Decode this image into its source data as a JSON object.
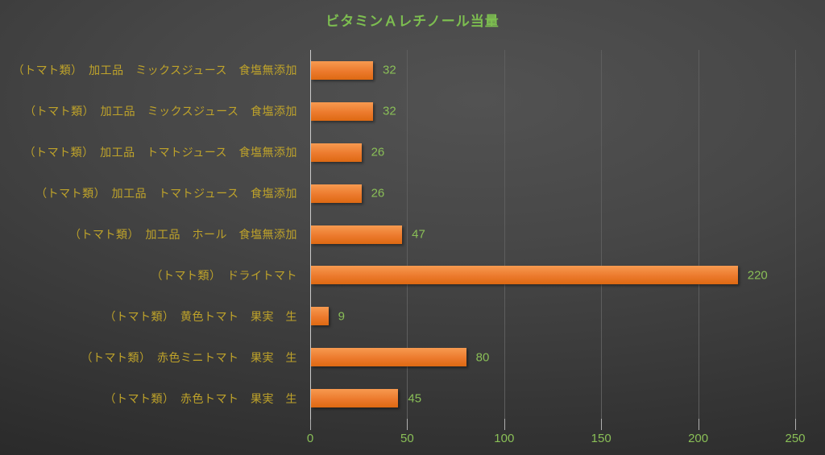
{
  "chart_data": {
    "type": "bar",
    "orientation": "horizontal",
    "title": "ビタミンＡレチノール当量",
    "categories": [
      "（トマト類）　加工品　ミックスジュース　食塩無添加",
      "（トマト類）　加工品　ミックスジュース　食塩添加",
      "（トマト類）　加工品　トマトジュース　食塩無添加",
      "（トマト類）　加工品　トマトジュース　食塩添加",
      "（トマト類）　加工品　ホール　食塩無添加",
      "（トマト類）　ドライトマト",
      "（トマト類）　黄色トマト　果実　生",
      "（トマト類）　赤色ミニトマト　果実　生",
      "（トマト類）　赤色トマト　果実　生"
    ],
    "values": [
      32,
      32,
      26,
      26,
      47,
      220,
      9,
      80,
      45
    ],
    "xlabel": "",
    "ylabel": "",
    "xlim": [
      0,
      250
    ],
    "x_ticks": [
      0,
      50,
      100,
      150,
      200,
      250
    ],
    "grid": true,
    "legend": false,
    "colors": {
      "bar_top": "#F79A50",
      "bar_mid": "#EC7A2D",
      "bar_bottom": "#DE6912",
      "title": "#7DBE50",
      "value_labels": "#8ABF57",
      "axis_tick_labels": "#8ABF57",
      "category_labels": "#BFA32A",
      "gridline": "#5E5E5E",
      "axis_line": "#C9C9C9",
      "tick_mark": "#B0B0B0"
    }
  }
}
